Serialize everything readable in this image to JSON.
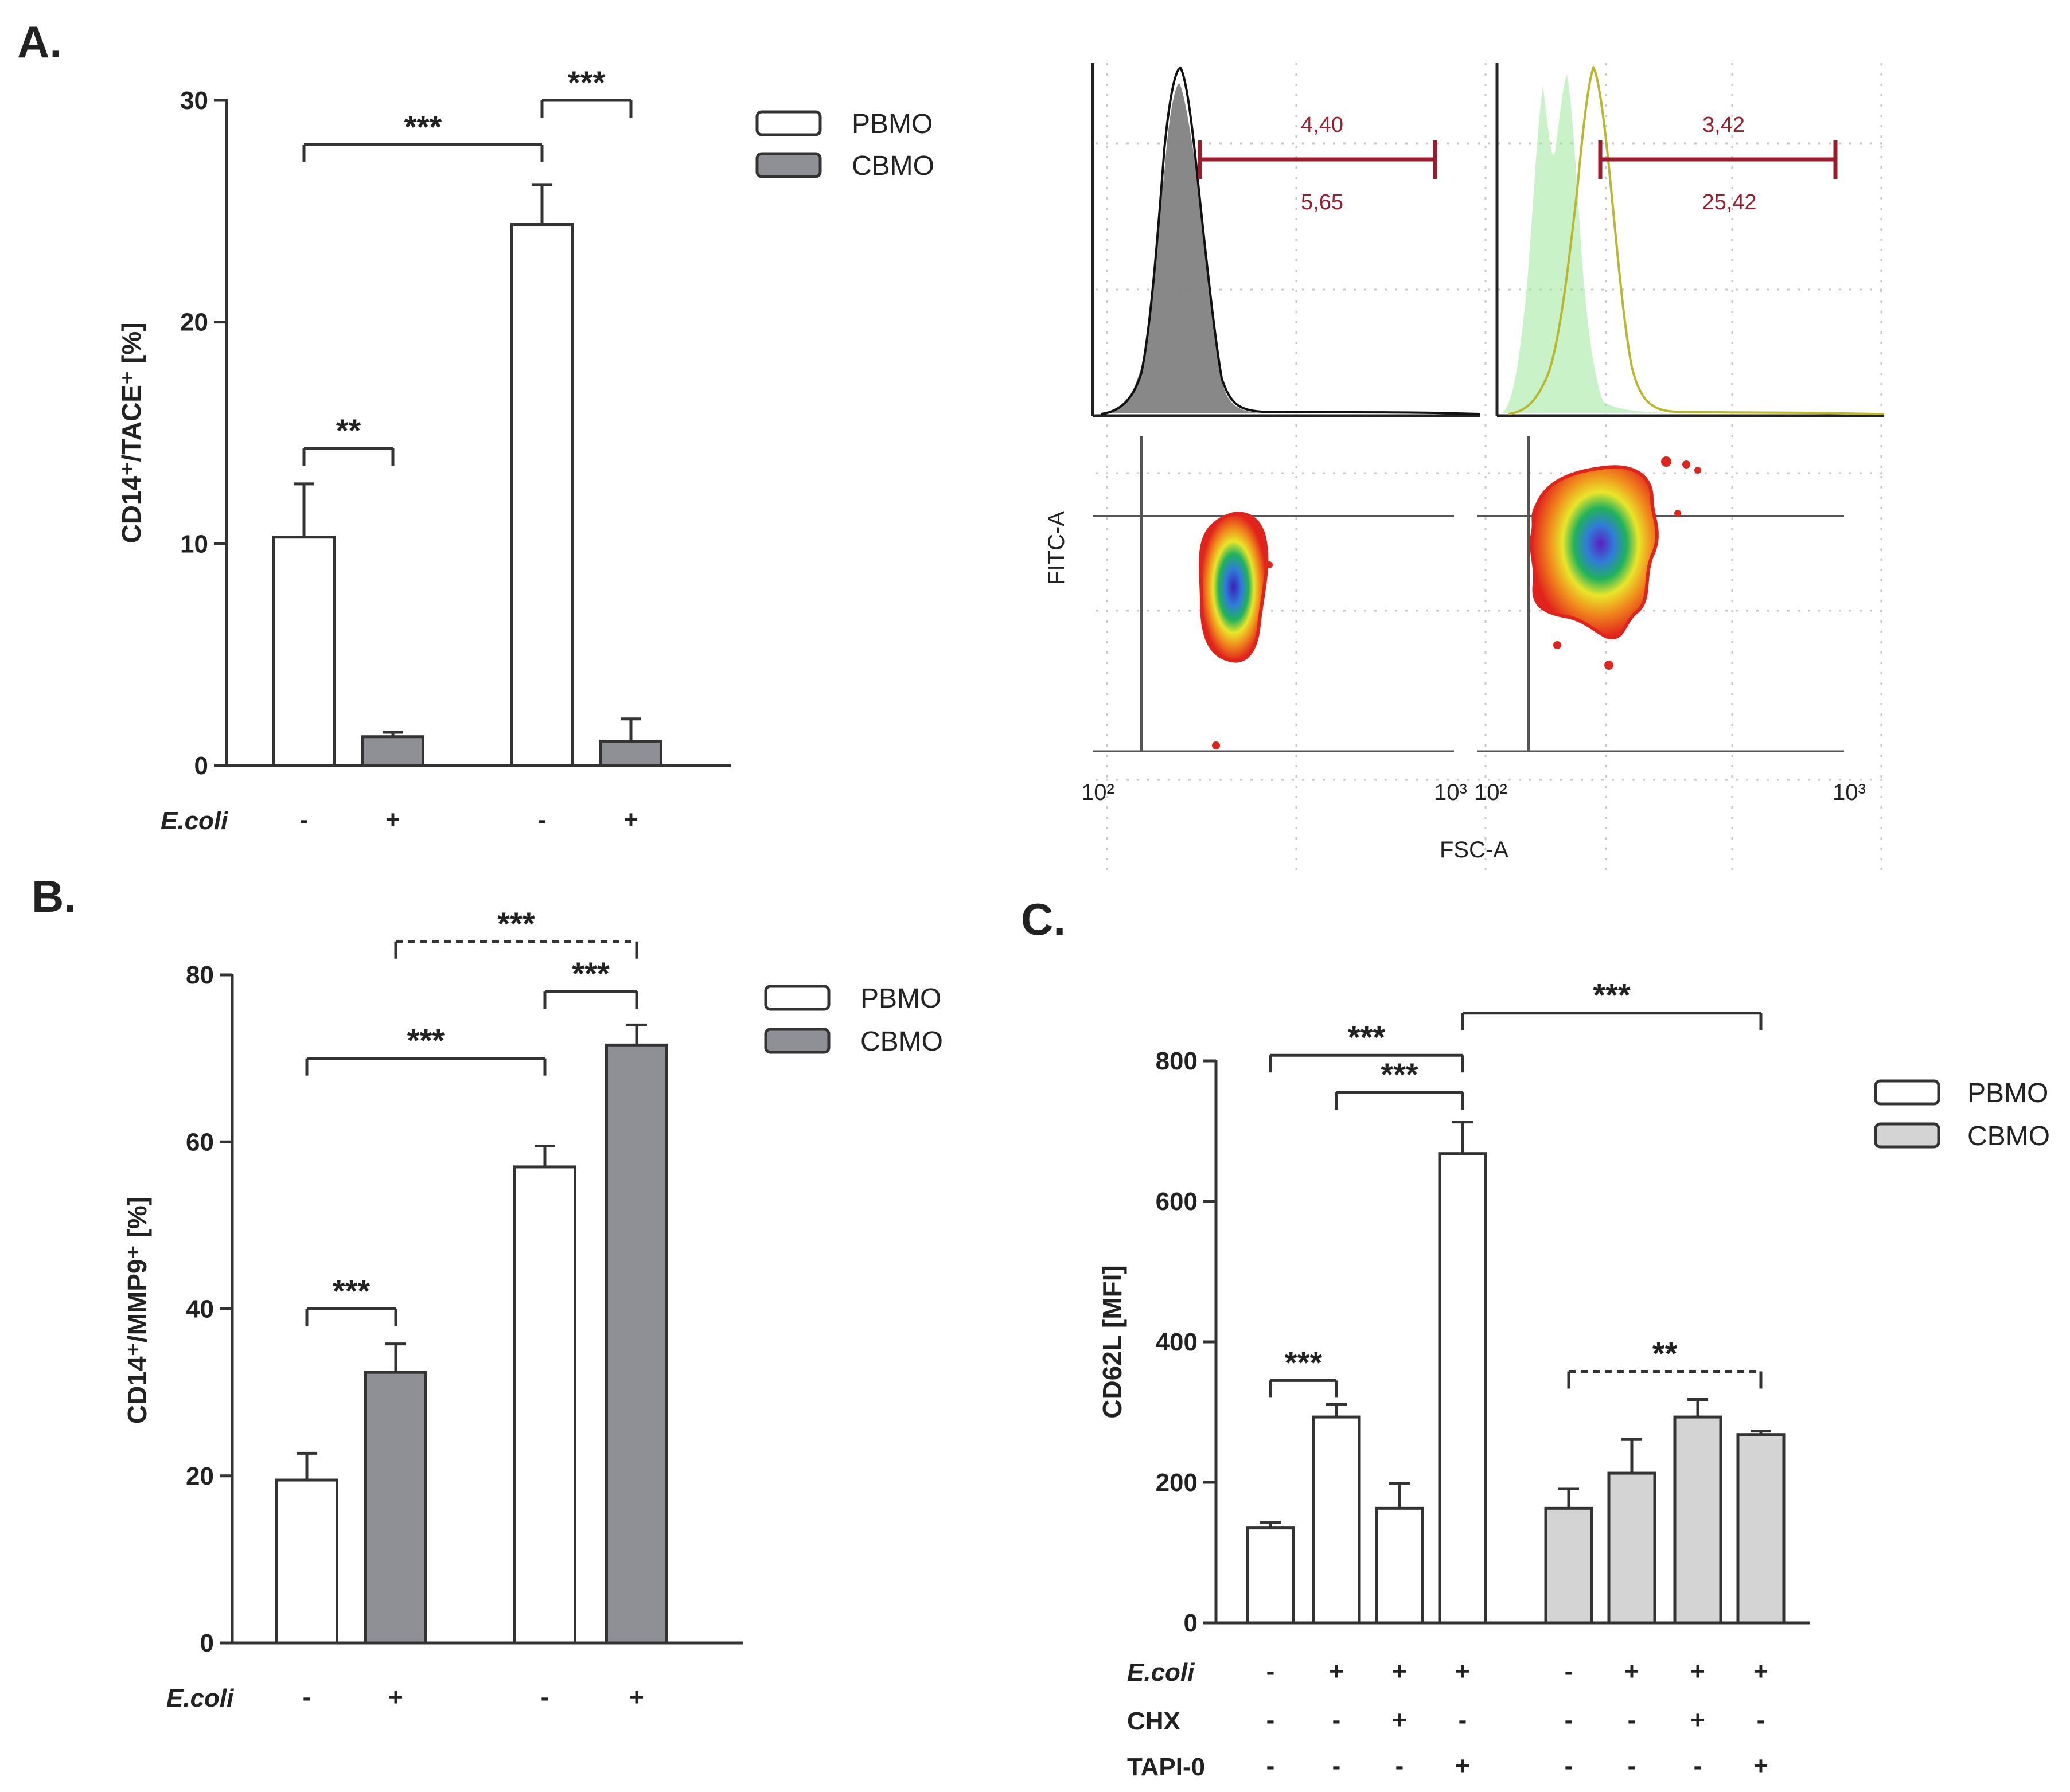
{
  "panels": {
    "A": "A.",
    "B": "B.",
    "C": "C."
  },
  "colors": {
    "pbmo": "#ffffff",
    "cbmo_dark": "#8f8f96",
    "cbmo_light": "#d4d4d4",
    "axis": "#333333",
    "gate": "#9b1c2c"
  },
  "legend": {
    "pbmo": "PBMO",
    "cbmo": "CBMO"
  },
  "chart_data": [
    {
      "id": "A",
      "type": "bar",
      "ylabel": "CD14⁺/TACE⁺ [%]",
      "ylim": [
        0,
        30
      ],
      "yticks": [
        0,
        10,
        20,
        30
      ],
      "row_labels": [
        "E.coli"
      ],
      "bars": [
        {
          "group": "PBMO",
          "value": 10.3,
          "error": 2.4,
          "conditions": [
            "-"
          ]
        },
        {
          "group": "CBMO",
          "value": 1.3,
          "error": 0.2,
          "conditions": [
            "+"
          ]
        },
        {
          "group": "PBMO",
          "value": 24.4,
          "error": 1.8,
          "conditions": [
            "-"
          ]
        },
        {
          "group": "CBMO",
          "value": 1.1,
          "error": 1.0,
          "conditions": [
            "+"
          ]
        }
      ],
      "brackets": [
        {
          "from": 0,
          "to": 1,
          "y": 14.3,
          "label": "**",
          "dashed": false
        },
        {
          "from": 0,
          "to": 2,
          "y": 28.0,
          "label": "***",
          "dashed": false
        },
        {
          "from": 2,
          "to": 3,
          "y": 30.0,
          "label": "***",
          "dashed": false
        }
      ]
    },
    {
      "id": "B",
      "type": "bar",
      "ylabel": "CD14⁺/MMP9⁺ [%]",
      "ylim": [
        0,
        80
      ],
      "yticks": [
        0,
        20,
        40,
        60,
        80
      ],
      "row_labels": [
        "E.coli"
      ],
      "bars": [
        {
          "group": "PBMO",
          "value": 19.5,
          "error": 3.2,
          "conditions": [
            "-"
          ]
        },
        {
          "group": "CBMO",
          "value": 32.4,
          "error": 3.4,
          "conditions": [
            "+"
          ]
        },
        {
          "group": "PBMO",
          "value": 57.0,
          "error": 2.5,
          "conditions": [
            "-"
          ]
        },
        {
          "group": "CBMO",
          "value": 71.6,
          "error": 2.4,
          "conditions": [
            "+"
          ]
        }
      ],
      "brackets": [
        {
          "from": 0,
          "to": 1,
          "y": 40.0,
          "label": "***",
          "dashed": false
        },
        {
          "from": 0,
          "to": 2,
          "y": 70.0,
          "label": "***",
          "dashed": false
        },
        {
          "from": 2,
          "to": 3,
          "y": 78.0,
          "label": "***",
          "dashed": false
        },
        {
          "from": 1,
          "to": 3,
          "y": 84.0,
          "label": "***",
          "dashed": true
        }
      ]
    },
    {
      "id": "C",
      "type": "bar",
      "ylabel": "CD62L [MFI]",
      "ylim": [
        0,
        800
      ],
      "yticks": [
        0,
        200,
        400,
        600,
        800
      ],
      "row_labels": [
        "E.coli",
        "CHX",
        "TAPI-0"
      ],
      "bars": [
        {
          "group": "PBMO",
          "value": 135,
          "error": 8,
          "conditions": [
            "-",
            "-",
            "-"
          ]
        },
        {
          "group": "PBMO",
          "value": 293,
          "error": 18,
          "conditions": [
            "+",
            "-",
            "-"
          ]
        },
        {
          "group": "PBMO",
          "value": 163,
          "error": 35,
          "conditions": [
            "+",
            "+",
            "-"
          ]
        },
        {
          "group": "PBMO",
          "value": 668,
          "error": 45,
          "conditions": [
            "+",
            "-",
            "+"
          ]
        },
        {
          "group": "CBMO",
          "value": 163,
          "error": 28,
          "conditions": [
            "-",
            "-",
            "-"
          ]
        },
        {
          "group": "CBMO",
          "value": 213,
          "error": 48,
          "conditions": [
            "+",
            "-",
            "-"
          ]
        },
        {
          "group": "CBMO",
          "value": 293,
          "error": 25,
          "conditions": [
            "+",
            "+",
            "-"
          ]
        },
        {
          "group": "CBMO",
          "value": 268,
          "error": 5,
          "conditions": [
            "+",
            "-",
            "+"
          ]
        }
      ],
      "brackets": [
        {
          "from": 0,
          "to": 1,
          "y": 345,
          "label": "***",
          "dashed": false
        },
        {
          "from": 4,
          "to": 7,
          "y": 358,
          "label": "**",
          "dashed": true
        },
        {
          "from": 1,
          "to": 3,
          "y": 755,
          "label": "***",
          "dashed": false
        },
        {
          "from": 0,
          "to": 3,
          "y": 808,
          "label": "***",
          "dashed": false
        },
        {
          "from": 3,
          "to": 7,
          "y": 868,
          "label": "***",
          "dashed": false
        }
      ]
    }
  ],
  "flow": {
    "xlabel": "FSC-A",
    "ylabel": "FITC-A",
    "tick_low": "10²",
    "tick_high": "10³",
    "left_gate": {
      "upper": "4,40",
      "lower": "5,65"
    },
    "right_gate": {
      "upper": "3,42",
      "lower": "25,42"
    }
  }
}
